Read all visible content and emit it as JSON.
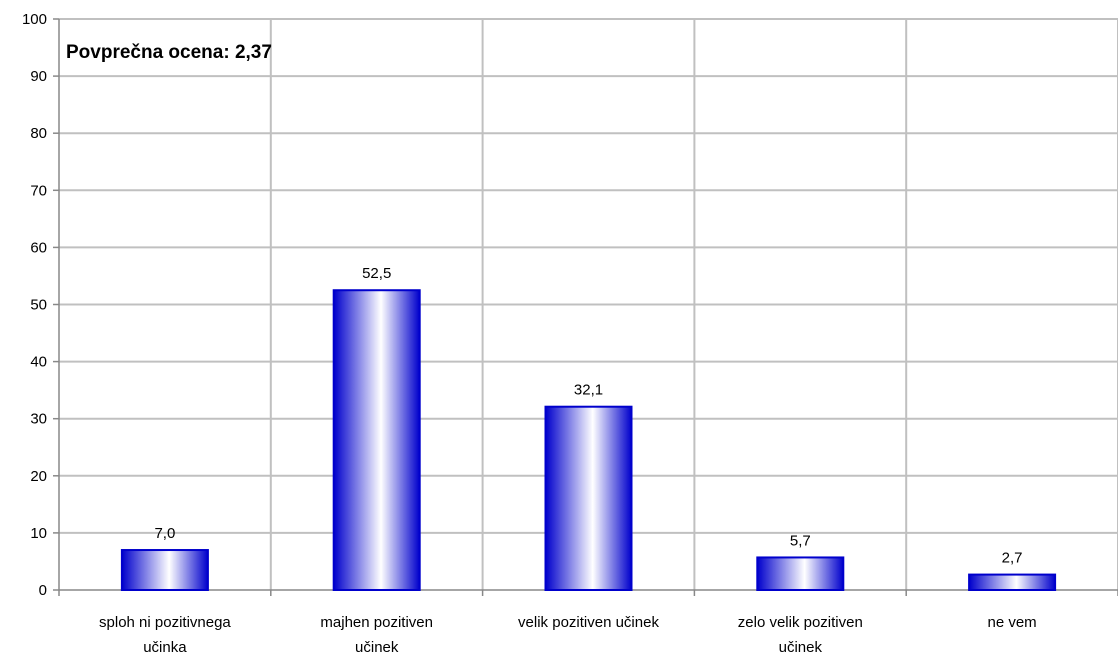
{
  "chart_data": {
    "type": "bar",
    "categories": [
      [
        "sploh ni pozitivnega",
        "učinka"
      ],
      [
        "majhen pozitiven",
        "učinek"
      ],
      [
        "velik pozitiven učinek"
      ],
      [
        "zelo velik pozitiven",
        "učinek"
      ],
      [
        "ne vem"
      ]
    ],
    "values": [
      7.0,
      52.5,
      32.1,
      5.7,
      2.7
    ],
    "value_labels": [
      "7,0",
      "52,5",
      "32,1",
      "5,7",
      "2,7"
    ],
    "ylim": [
      0,
      100
    ],
    "yticks": [
      0,
      10,
      20,
      30,
      40,
      50,
      60,
      70,
      80,
      90,
      100
    ],
    "grid": true,
    "bar_color": "#0000cc",
    "bar_highlight": "#ffffff",
    "annotation": "Povprečna ocena: 2,37"
  }
}
